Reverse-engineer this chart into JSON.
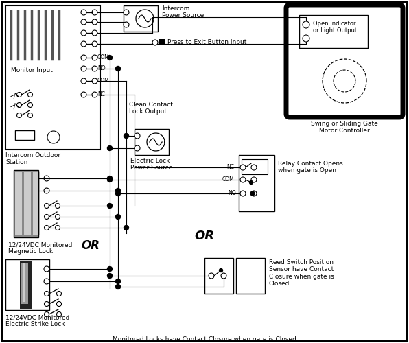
{
  "bg": "#ffffff",
  "lc": "#000000",
  "labels": {
    "intercom_ps": "Intercom\nPower Source",
    "press_exit": "Press to Exit Button Input",
    "clean_contact": "Clean Contact\nLock Output",
    "elec_lock_ps": "Electric Lock\nPower Source",
    "monitor_input": "Monitor Input",
    "intercom_station": "Intercom Outdoor\nStation",
    "mag_lock": "12/24VDC Monitored\nMagnetic Lock",
    "strike_lock": "12/24VDC Monitored\nElectric Strike Lock",
    "swing_gate": "Swing or Sliding Gate\nMotor Controller",
    "open_ind": "Open Indicator\nor Light Output",
    "relay_contact": "Relay Contact Opens\nwhen gate is Open",
    "reed_switch": "Reed Switch Position\nSensor have Contact\nClosure when gate is\nClosed",
    "or1": "OR",
    "or2": "OR",
    "footer": "Monitored Locks have Contact Closure when gate is Closed",
    "com": "COM",
    "no": "NO",
    "nc": "NC",
    "com2": "COM",
    "no2": "NO",
    "nc2": "NC"
  },
  "grays": {
    "dark": "#777777",
    "mid": "#aaaaaa",
    "light": "#cccccc",
    "stripe": "#555555"
  }
}
